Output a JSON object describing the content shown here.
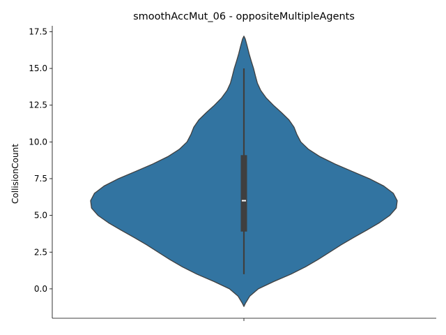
{
  "chart_data": {
    "type": "violin",
    "title": "smoothAccMut_06 - oppositeMultipleAgents",
    "xlabel": "",
    "ylabel": "CollisionCount",
    "ylim": [
      -2,
      17.9
    ],
    "yticks": [
      "0.0",
      "2.5",
      "5.0",
      "7.5",
      "10.0",
      "12.5",
      "15.0",
      "17.5"
    ],
    "ytick_values": [
      0,
      2.5,
      5,
      7.5,
      10,
      12.5,
      15,
      17.5
    ],
    "grid": false,
    "colors": {
      "violin": "#3274a1",
      "outline": "#3f3f3f",
      "box": "#3f3f3f",
      "median": "#ffffff"
    },
    "series": [
      {
        "box": {
          "whisker_low": 1.0,
          "q1": 3.9,
          "median": 6.0,
          "q3": 9.1,
          "whisker_high": 15.0
        },
        "density": [
          {
            "y": -1.2,
            "w": 0.0
          },
          {
            "y": -1.0,
            "w": 0.009
          },
          {
            "y": -0.5,
            "w": 0.038
          },
          {
            "y": 0.0,
            "w": 0.094
          },
          {
            "y": 0.5,
            "w": 0.195
          },
          {
            "y": 1.0,
            "w": 0.307
          },
          {
            "y": 1.5,
            "w": 0.402
          },
          {
            "y": 2.0,
            "w": 0.484
          },
          {
            "y": 2.5,
            "w": 0.56
          },
          {
            "y": 3.0,
            "w": 0.635
          },
          {
            "y": 3.5,
            "w": 0.717
          },
          {
            "y": 4.0,
            "w": 0.802
          },
          {
            "y": 4.5,
            "w": 0.884
          },
          {
            "y": 5.0,
            "w": 0.952
          },
          {
            "y": 5.5,
            "w": 0.994
          },
          {
            "y": 6.0,
            "w": 1.0
          },
          {
            "y": 6.5,
            "w": 0.975
          },
          {
            "y": 7.0,
            "w": 0.912
          },
          {
            "y": 7.5,
            "w": 0.818
          },
          {
            "y": 8.0,
            "w": 0.705
          },
          {
            "y": 8.5,
            "w": 0.594
          },
          {
            "y": 9.0,
            "w": 0.496
          },
          {
            "y": 9.5,
            "w": 0.421
          },
          {
            "y": 10.0,
            "w": 0.371
          },
          {
            "y": 10.5,
            "w": 0.346
          },
          {
            "y": 11.0,
            "w": 0.327
          },
          {
            "y": 11.5,
            "w": 0.294
          },
          {
            "y": 12.0,
            "w": 0.245
          },
          {
            "y": 12.5,
            "w": 0.192
          },
          {
            "y": 13.0,
            "w": 0.145
          },
          {
            "y": 13.5,
            "w": 0.11
          },
          {
            "y": 14.0,
            "w": 0.088
          },
          {
            "y": 14.5,
            "w": 0.075
          },
          {
            "y": 15.0,
            "w": 0.063
          },
          {
            "y": 15.5,
            "w": 0.048
          },
          {
            "y": 16.0,
            "w": 0.034
          },
          {
            "y": 16.5,
            "w": 0.022
          },
          {
            "y": 17.0,
            "w": 0.009
          },
          {
            "y": 17.2,
            "w": 0.0
          }
        ]
      }
    ]
  }
}
